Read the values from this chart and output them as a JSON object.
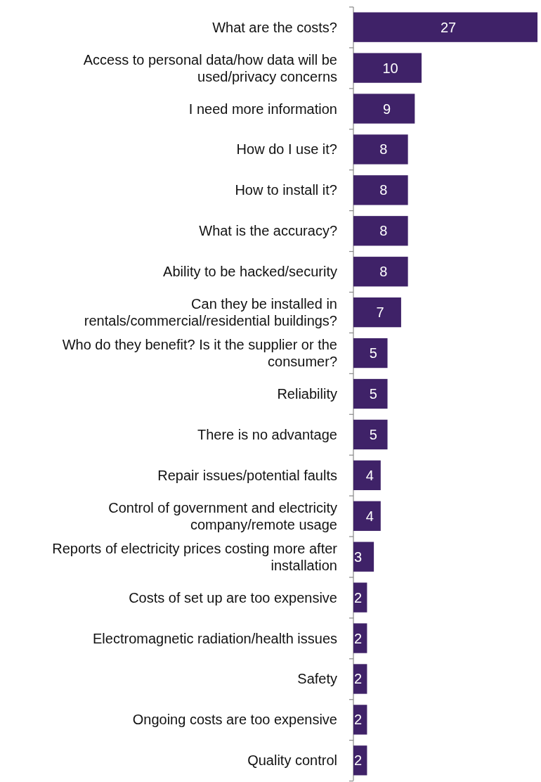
{
  "chart_data": {
    "type": "bar",
    "orientation": "horizontal",
    "data_labels": true,
    "color": "#3f2268",
    "categories": [
      "What are the costs?",
      "Access to personal data/how data will be used/privacy concerns",
      "I need more information",
      "How do I use it?",
      "How to install it?",
      "What is the accuracy?",
      "Ability to be hacked/security",
      "Can they be installed in rentals/commercial/residential buildings?",
      "Who do they benefit? Is it the supplier or the consumer?",
      "Reliability",
      "There is no advantage",
      "Repair issues/potential faults",
      "Control of government and electricity company/remote usage",
      "Reports of electricity prices costing more after installation",
      "Costs of set up are too expensive",
      "Electromagnetic radiation/health issues",
      "Safety",
      "Ongoing costs are too expensive",
      "Quality control"
    ],
    "values": [
      27,
      10,
      9,
      8,
      8,
      8,
      8,
      7,
      5,
      5,
      5,
      4,
      4,
      3,
      2,
      2,
      2,
      2,
      2
    ]
  }
}
